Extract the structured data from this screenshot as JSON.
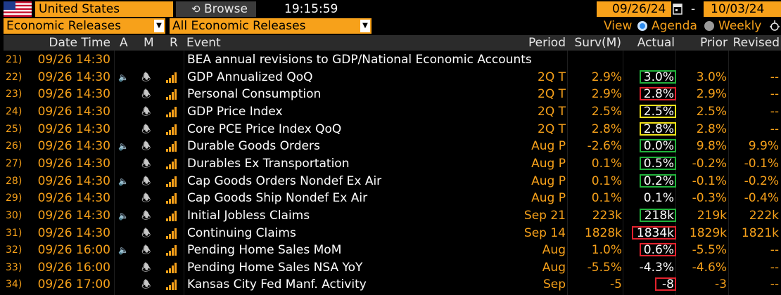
{
  "toolbar": {
    "country": "United States",
    "browse_label": "Browse",
    "browse_icon": "refresh-icon",
    "time": "19:15:59",
    "start_date": "09/26/24",
    "date_separator": "-",
    "end_date": "10/03/24",
    "calendar_icon": "calendar-icon"
  },
  "filters": {
    "category": "Economic Releases",
    "subcategory": "All Economic Releases",
    "view_label": "View",
    "agenda_label": "Agenda",
    "weekly_label": "Weekly"
  },
  "columns": {
    "datetime": "Date Time",
    "a": "A",
    "m": "M",
    "r": "R",
    "event": "Event",
    "period": "Period",
    "surv": "Surv(M)",
    "actual": "Actual",
    "prior": "Prior",
    "revised": "Revised"
  },
  "colors": {
    "accent": "#f7a11a",
    "beat": "#21b33b",
    "miss": "#e3222d",
    "inline": "#f2e21a"
  },
  "rows": [
    {
      "num": "21)",
      "dt": "09/26 14:30",
      "audio": false,
      "bell": false,
      "bars": false,
      "event": "BEA annual revisions to GDP/National Economic Accounts",
      "period": "",
      "surv": "",
      "actual": "",
      "prior": "",
      "revised": "",
      "box": ""
    },
    {
      "num": "22)",
      "dt": "09/26 14:30",
      "audio": true,
      "bell": true,
      "bars": true,
      "event": "GDP Annualized QoQ",
      "period": "2Q T",
      "surv": "2.9%",
      "actual": "3.0%",
      "prior": "3.0%",
      "revised": "--",
      "box": "green"
    },
    {
      "num": "23)",
      "dt": "09/26 14:30",
      "audio": false,
      "bell": true,
      "bars": true,
      "event": "Personal Consumption",
      "period": "2Q T",
      "surv": "2.9%",
      "actual": "2.8%",
      "prior": "2.9%",
      "revised": "--",
      "box": "red"
    },
    {
      "num": "24)",
      "dt": "09/26 14:30",
      "audio": false,
      "bell": true,
      "bars": true,
      "event": "GDP Price Index",
      "period": "2Q T",
      "surv": "2.5%",
      "actual": "2.5%",
      "prior": "2.5%",
      "revised": "--",
      "box": "yellow"
    },
    {
      "num": "25)",
      "dt": "09/26 14:30",
      "audio": false,
      "bell": true,
      "bars": true,
      "event": "Core PCE Price Index QoQ",
      "period": "2Q T",
      "surv": "2.8%",
      "actual": "2.8%",
      "prior": "2.8%",
      "revised": "--",
      "box": "yellow"
    },
    {
      "num": "26)",
      "dt": "09/26 14:30",
      "audio": true,
      "bell": true,
      "bars": true,
      "event": "Durable Goods Orders",
      "period": "Aug P",
      "surv": "-2.6%",
      "actual": "0.0%",
      "prior": "9.8%",
      "revised": "9.9%",
      "box": "green"
    },
    {
      "num": "27)",
      "dt": "09/26 14:30",
      "audio": false,
      "bell": true,
      "bars": true,
      "event": "Durables Ex Transportation",
      "period": "Aug P",
      "surv": "0.1%",
      "actual": "0.5%",
      "prior": "-0.2%",
      "revised": "-0.1%",
      "box": "green"
    },
    {
      "num": "28)",
      "dt": "09/26 14:30",
      "audio": true,
      "bell": true,
      "bars": true,
      "event": "Cap Goods Orders Nondef Ex Air",
      "period": "Aug P",
      "surv": "0.1%",
      "actual": "0.2%",
      "prior": "-0.1%",
      "revised": "-0.2%",
      "box": "green"
    },
    {
      "num": "29)",
      "dt": "09/26 14:30",
      "audio": false,
      "bell": true,
      "bars": true,
      "event": "Cap Goods Ship Nondef Ex Air",
      "period": "Aug P",
      "surv": "0.1%",
      "actual": "0.1%",
      "prior": "-0.3%",
      "revised": "-0.4%",
      "box": ""
    },
    {
      "num": "30)",
      "dt": "09/26 14:30",
      "audio": true,
      "bell": true,
      "bars": true,
      "event": "Initial Jobless Claims",
      "period": "Sep 21",
      "surv": "223k",
      "actual": "218k",
      "prior": "219k",
      "revised": "222k",
      "box": "green"
    },
    {
      "num": "31)",
      "dt": "09/26 14:30",
      "audio": false,
      "bell": true,
      "bars": true,
      "event": "Continuing Claims",
      "period": "Sep 14",
      "surv": "1828k",
      "actual": "1834k",
      "prior": "1829k",
      "revised": "1821k",
      "box": "red"
    },
    {
      "num": "32)",
      "dt": "09/26 16:00",
      "audio": true,
      "bell": true,
      "bars": true,
      "event": "Pending Home Sales MoM",
      "period": "Aug",
      "surv": "1.0%",
      "actual": "0.6%",
      "prior": "-5.5%",
      "revised": "--",
      "box": "red"
    },
    {
      "num": "33)",
      "dt": "09/26 16:00",
      "audio": false,
      "bell": true,
      "bars": true,
      "event": "Pending Home Sales NSA YoY",
      "period": "Aug",
      "surv": "-5.5%",
      "actual": "-4.3%",
      "prior": "-4.6%",
      "revised": "--",
      "box": ""
    },
    {
      "num": "34)",
      "dt": "09/26 17:00",
      "audio": false,
      "bell": true,
      "bars": true,
      "event": "Kansas City Fed Manf. Activity",
      "period": "Sep",
      "surv": "-5",
      "actual": "-8",
      "prior": "-3",
      "revised": "--",
      "box": "red"
    }
  ]
}
